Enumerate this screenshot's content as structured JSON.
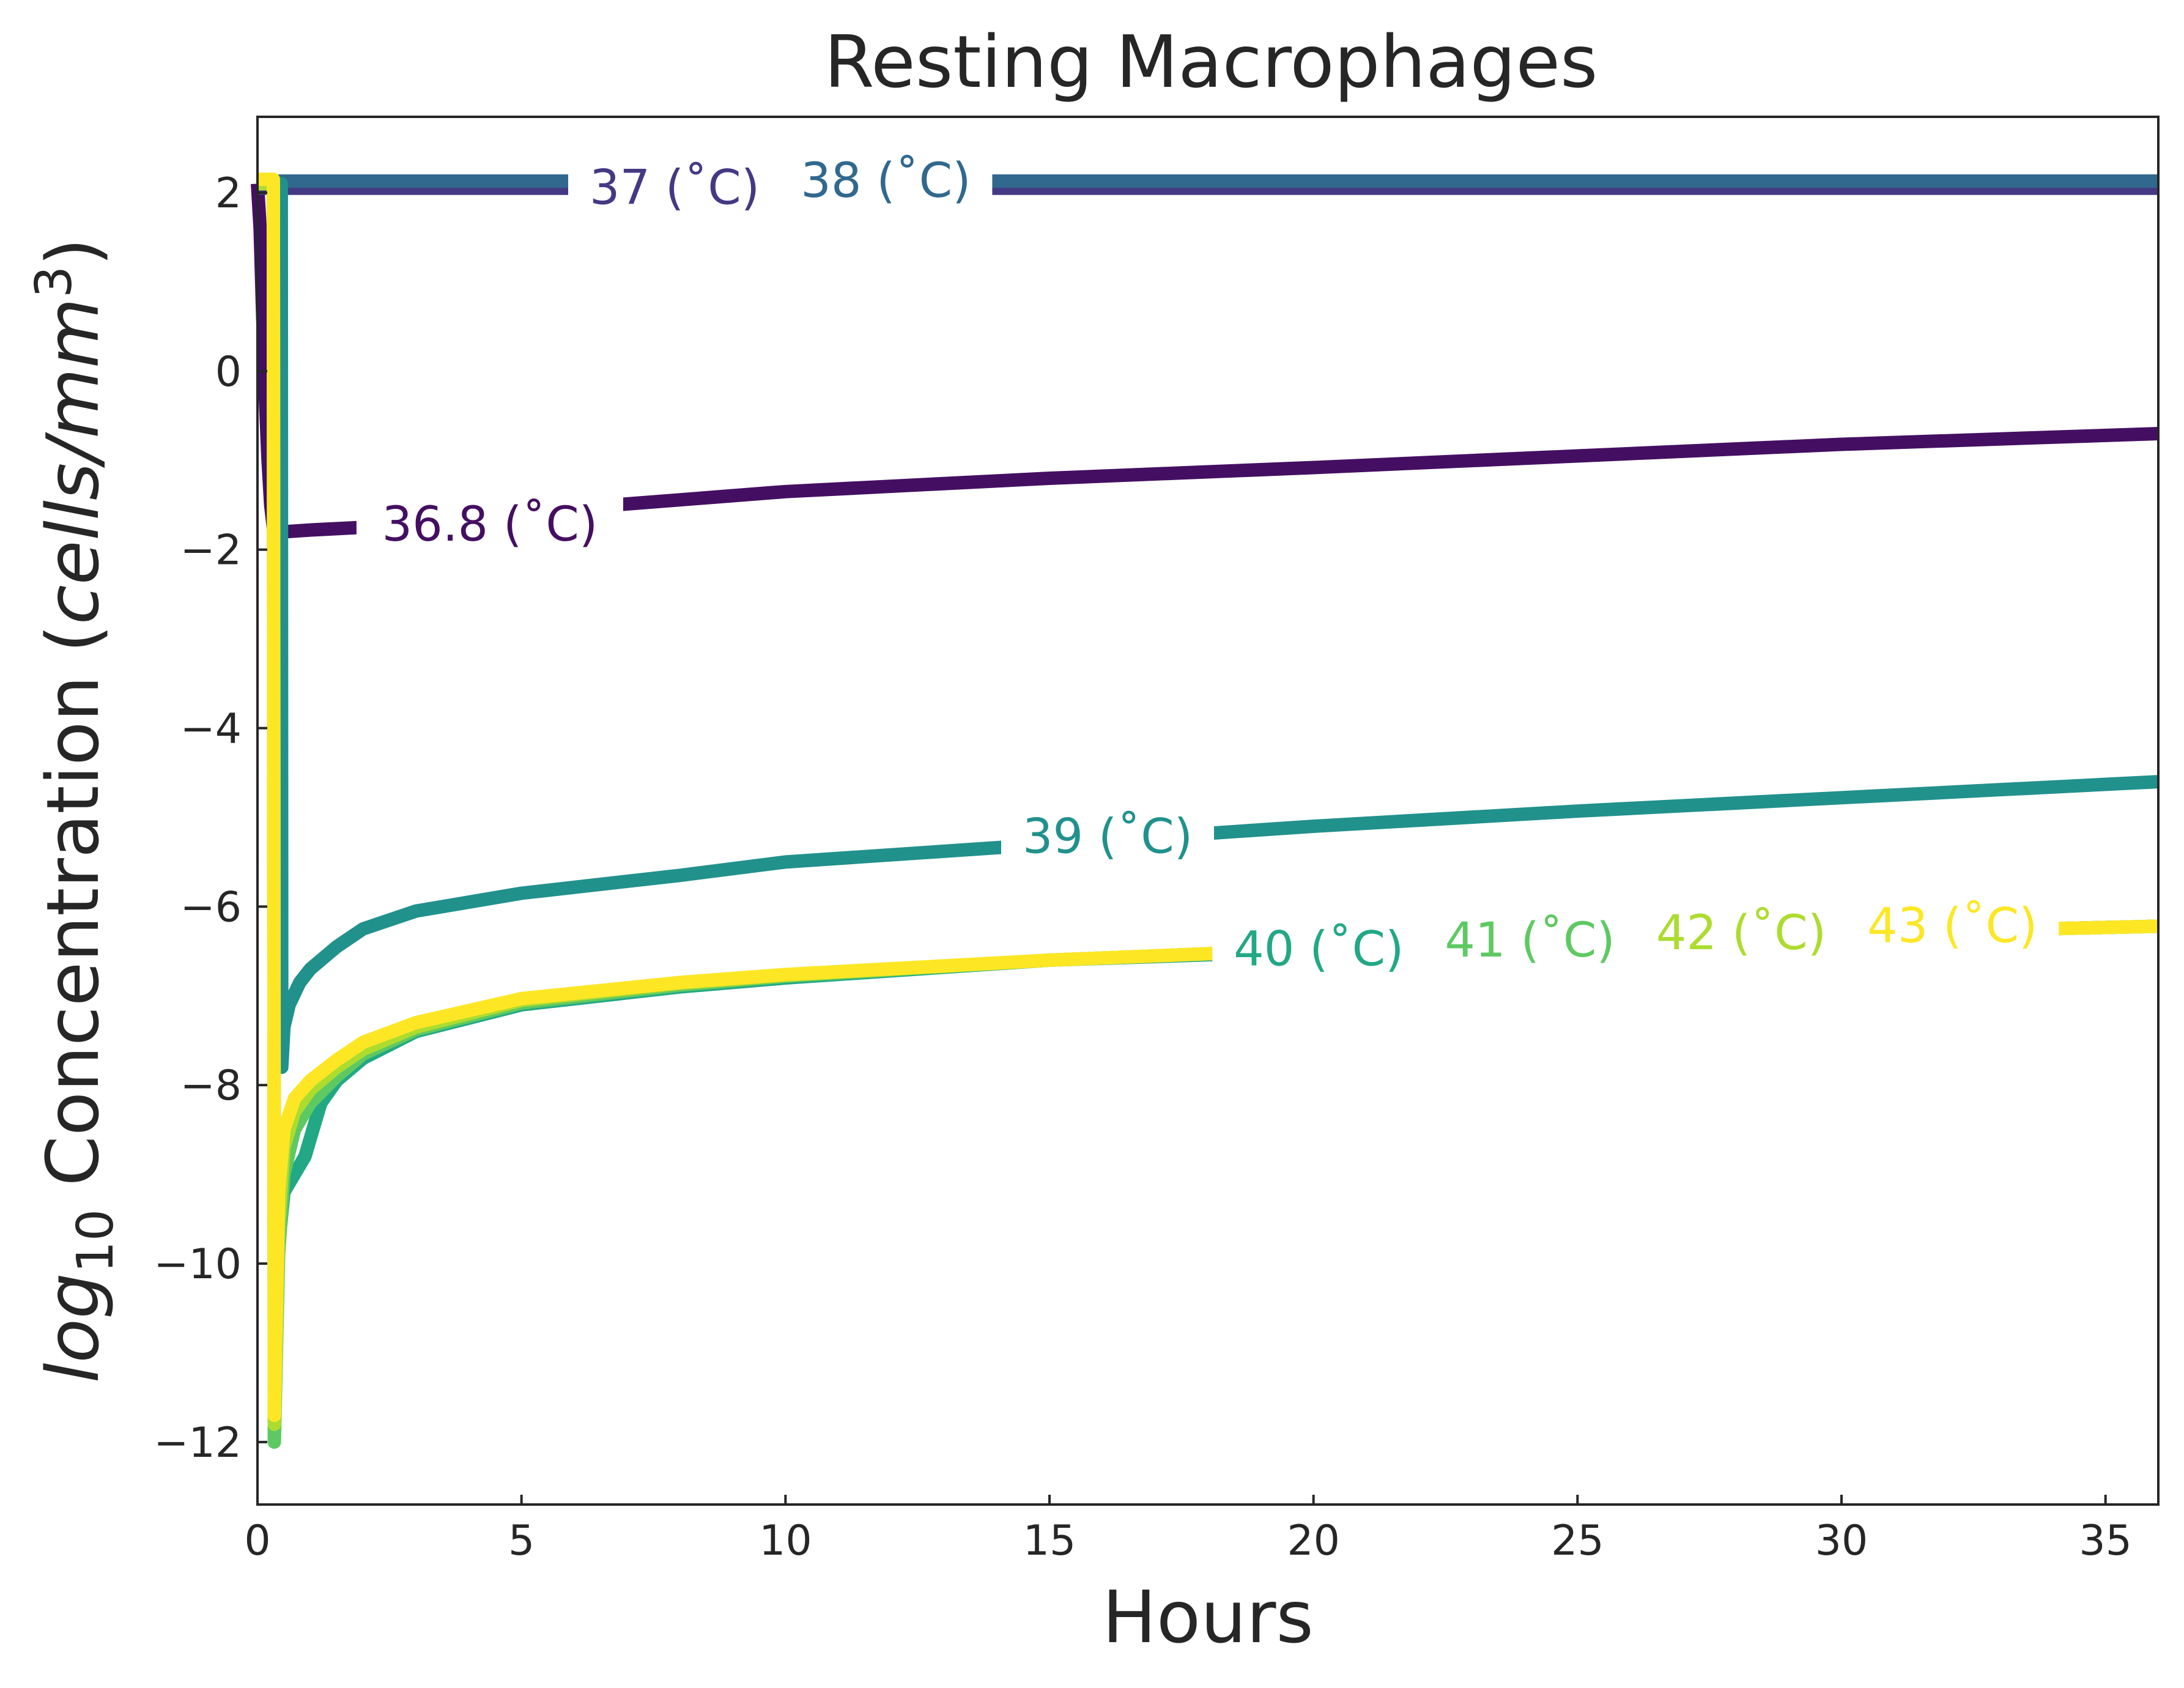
{
  "chart_data": {
    "type": "line",
    "title": "Resting Macrophages",
    "xlabel": "Hours",
    "ylabel_base": "log",
    "ylabel_sub": "10",
    "ylabel_main": " Concentration (",
    "ylabel_unit": "cells/mm",
    "ylabel_exp": "3",
    "ylabel_close": ")",
    "xlim": [
      0,
      36
    ],
    "ylim": [
      -12.7,
      2.85
    ],
    "xticks": [
      0,
      5,
      10,
      15,
      20,
      25,
      30,
      35
    ],
    "xtick_labels": [
      "0",
      "5",
      "10",
      "15",
      "20",
      "25",
      "30",
      "35"
    ],
    "yticks": [
      2,
      0,
      -2,
      -4,
      -6,
      -8,
      -10,
      -12
    ],
    "ytick_labels": [
      "2",
      "0",
      "−2",
      "−4",
      "−6",
      "−8",
      "−10",
      "−12"
    ],
    "grid": false,
    "legend": "inline labels",
    "series": [
      {
        "name": "36.8 (˚C)",
        "color": "#440f62",
        "x": [
          0,
          0.05,
          0.1,
          0.15,
          0.2,
          0.25,
          0.3,
          0.35,
          0.4,
          0.5,
          1,
          2,
          5,
          10,
          15,
          20,
          25,
          30,
          36
        ],
        "y": [
          2.1,
          1.6,
          0.6,
          -0.3,
          -1.0,
          -1.5,
          -1.75,
          -1.8,
          -1.8,
          -1.8,
          -1.78,
          -1.75,
          -1.58,
          -1.35,
          -1.2,
          -1.08,
          -0.95,
          -0.82,
          -0.7
        ],
        "label_x": 4.4,
        "label_y": -1.72
      },
      {
        "name": "37 (˚C)",
        "color": "#443983",
        "x": [
          0,
          0.45,
          36
        ],
        "y": [
          2.05,
          2.05,
          2.05
        ],
        "label_x": 7.9,
        "label_y": 2.05
      },
      {
        "name": "38 (˚C)",
        "color": "#31688e",
        "x": [
          0,
          0.45,
          36
        ],
        "y": [
          2.13,
          2.13,
          2.13
        ],
        "label_x": 11.9,
        "label_y": 2.13
      },
      {
        "name": "39 (˚C)",
        "color": "#21918c",
        "x": [
          0,
          0.45,
          0.46,
          0.5,
          0.6,
          0.8,
          1,
          1.5,
          2,
          3,
          5,
          8,
          10,
          15,
          20,
          25,
          30,
          36
        ],
        "y": [
          2.1,
          2.1,
          -7.8,
          -7.35,
          -7.1,
          -6.85,
          -6.7,
          -6.45,
          -6.25,
          -6.05,
          -5.85,
          -5.65,
          -5.5,
          -5.3,
          -5.1,
          -4.93,
          -4.78,
          -4.6
        ],
        "label_x": 16.1,
        "label_y": -5.22
      },
      {
        "name": "40 (˚C)",
        "color": "#22a884",
        "x": [
          0,
          0.3,
          0.32,
          0.4,
          0.5,
          0.7,
          0.9,
          1.0,
          1.2,
          1.5,
          2,
          3,
          5,
          8,
          10,
          15,
          20,
          25,
          30,
          36
        ],
        "y": [
          2.1,
          2.1,
          -11.5,
          -9.8,
          -9.2,
          -9.0,
          -8.8,
          -8.6,
          -8.2,
          -7.95,
          -7.7,
          -7.4,
          -7.1,
          -6.9,
          -6.8,
          -6.6,
          -6.5,
          -6.4,
          -6.3,
          -6.22
        ],
        "label_x": 20.1,
        "label_y": -6.48
      },
      {
        "name": "41 (˚C)",
        "color": "#5ec962",
        "x": [
          0,
          0.3,
          0.32,
          0.4,
          0.5,
          0.7,
          1,
          1.5,
          2,
          3,
          5,
          8,
          10,
          15,
          20,
          25,
          30,
          36
        ],
        "y": [
          2.1,
          2.1,
          -12.0,
          -9.9,
          -9.0,
          -8.5,
          -8.2,
          -7.9,
          -7.65,
          -7.38,
          -7.08,
          -6.88,
          -6.78,
          -6.6,
          -6.48,
          -6.38,
          -6.3,
          -6.22
        ],
        "label_x": 24.1,
        "label_y": -6.38
      },
      {
        "name": "42 (˚C)",
        "color": "#addc30",
        "x": [
          0,
          0.3,
          0.32,
          0.4,
          0.5,
          0.7,
          1,
          1.5,
          2,
          3,
          5,
          8,
          10,
          15,
          20,
          25,
          30,
          36
        ],
        "y": [
          2.1,
          2.1,
          -11.8,
          -9.6,
          -8.7,
          -8.3,
          -8.05,
          -7.8,
          -7.6,
          -7.35,
          -7.05,
          -6.86,
          -6.77,
          -6.6,
          -6.48,
          -6.38,
          -6.3,
          -6.22
        ],
        "label_x": 28.1,
        "label_y": -6.3
      },
      {
        "name": "43 (˚C)",
        "color": "#fde725",
        "x": [
          0,
          0.3,
          0.32,
          0.4,
          0.5,
          0.7,
          1,
          1.5,
          2,
          3,
          5,
          8,
          10,
          15,
          20,
          25,
          30,
          36
        ],
        "y": [
          2.15,
          2.15,
          -11.7,
          -9.2,
          -8.5,
          -8.15,
          -7.95,
          -7.72,
          -7.52,
          -7.3,
          -7.03,
          -6.85,
          -6.76,
          -6.6,
          -6.48,
          -6.38,
          -6.3,
          -6.22
        ],
        "label_x": 32.1,
        "label_y": -6.22
      }
    ]
  }
}
